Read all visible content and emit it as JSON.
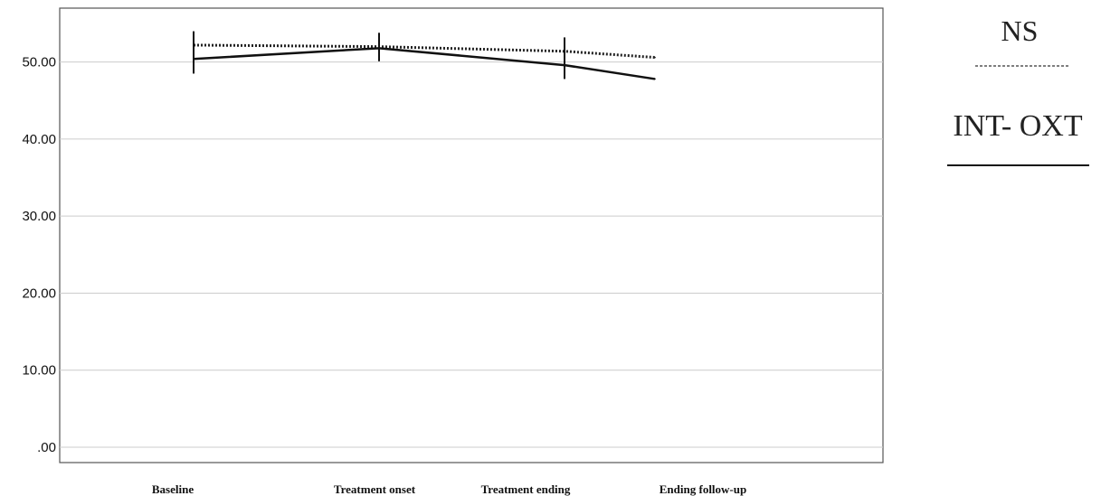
{
  "chart_data": {
    "type": "line",
    "title": "",
    "xlabel": "",
    "ylabel": "",
    "categories": [
      "Baseline",
      "Treatment onset",
      "Treatment ending",
      "Ending follow-up"
    ],
    "y_tick_labels": [
      ".00",
      "10.00",
      "20.00",
      "30.00",
      "40.00",
      "50.00"
    ],
    "ylim": [
      -2,
      57
    ],
    "grid": true,
    "legend_placement": "right",
    "series": [
      {
        "name": "NS",
        "style": "dotted",
        "color": "#222222",
        "values": [
          52.2,
          52.0,
          51.4,
          50.6
        ],
        "error_bars": [
          null,
          null,
          null,
          null
        ]
      },
      {
        "name": "INT- OXT",
        "style": "solid",
        "color": "#111111",
        "values": [
          50.4,
          51.8,
          49.6,
          47.8
        ],
        "error_bars": [
          [
            48.5,
            54.0
          ],
          [
            50.1,
            53.8
          ],
          [
            47.8,
            53.2
          ],
          null
        ]
      }
    ]
  },
  "colors": {
    "plot_border": "#555555",
    "gridline": "#cccccc",
    "axis_text": "#111111"
  }
}
